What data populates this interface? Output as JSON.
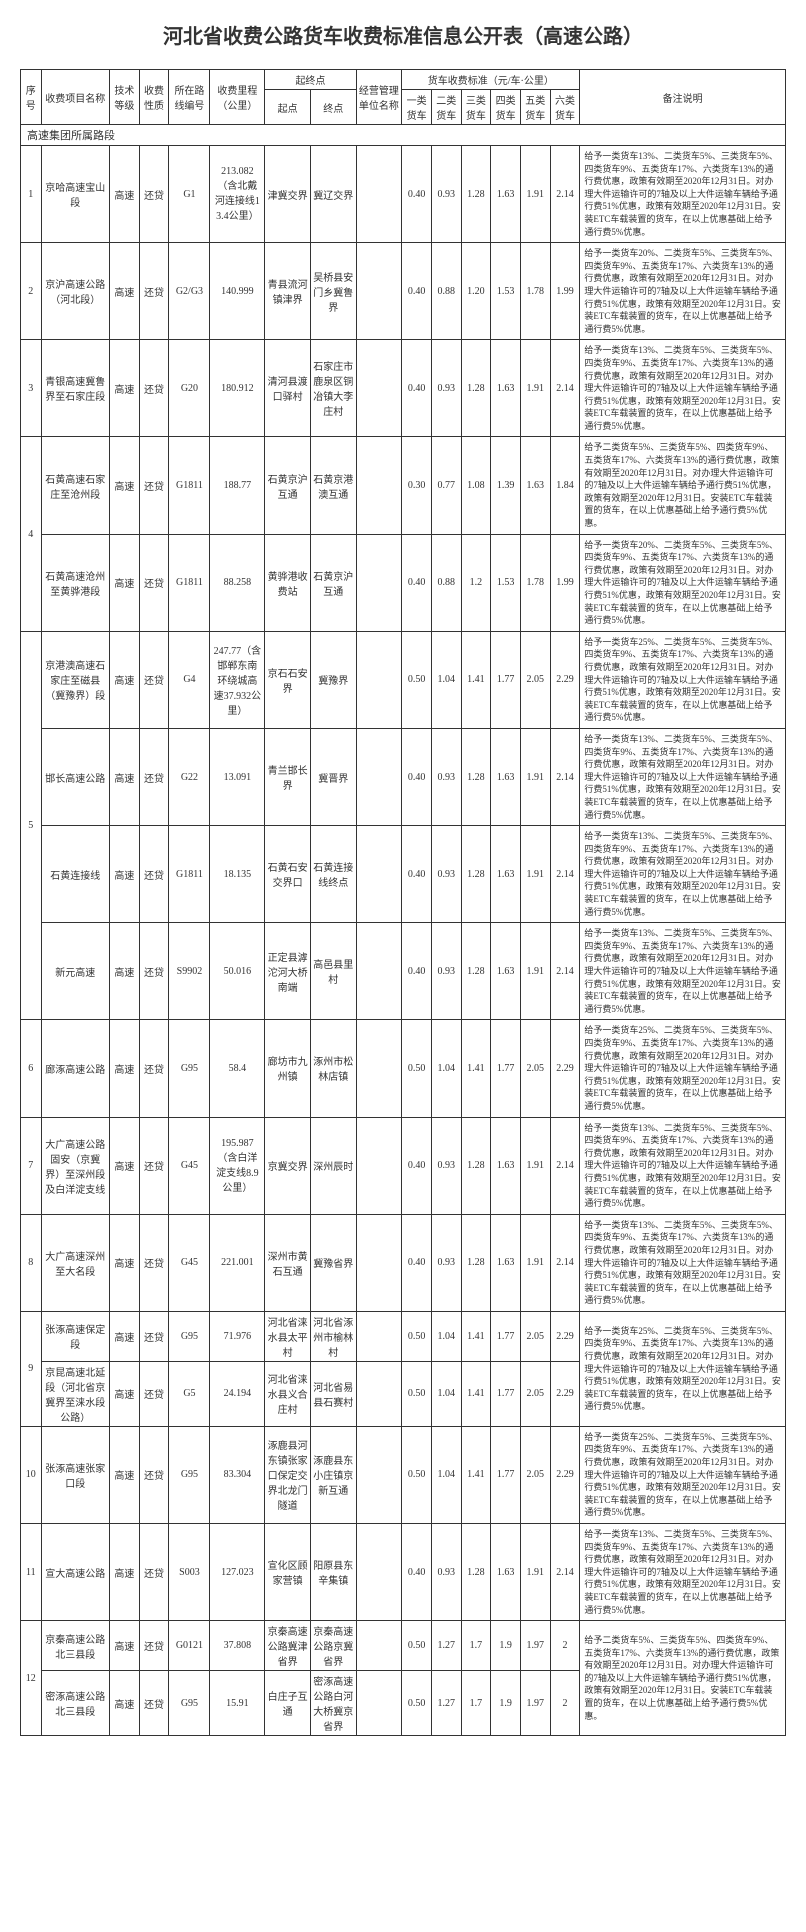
{
  "title": "河北省收费公路货车收费标准信息公开表（高速公路）",
  "headers": {
    "seq": "序号",
    "name": "收费项目名称",
    "tech": "技术等级",
    "fee": "收费性质",
    "route": "所在路线编号",
    "mileage": "收费里程（公里）",
    "startend": "起终点",
    "start": "起点",
    "end": "终点",
    "org": "经营管理单位名称",
    "rates": "货车收费标准（元/车·公里）",
    "c1": "一类货车",
    "c2": "二类货车",
    "c3": "三类货车",
    "c4": "四类货车",
    "c5": "五类货车",
    "c6": "六类货车",
    "remarks": "备注说明"
  },
  "section": "高速集团所属路段",
  "rows": [
    {
      "seq": "1",
      "name": "京哈高速宝山段",
      "tech": "高速",
      "fee": "还贷",
      "route": "G1",
      "mileage": "213.082（含北戴河连接线13.4公里）",
      "start": "津冀交界",
      "end": "冀辽交界",
      "org": "",
      "r": [
        "0.40",
        "0.93",
        "1.28",
        "1.63",
        "1.91",
        "2.14"
      ],
      "remarks": "给予一类货车13%、二类货车5%、三类货车5%、四类货车9%、五类货车17%、六类货车13%的通行费优惠，政策有效期至2020年12月31日。对办理大件运输许可的7轴及以上大件运输车辆给予通行费51%优惠，政策有效期至2020年12月31日。安装ETC车载装置的货车，在以上优惠基础上给予通行费5%优惠。"
    },
    {
      "seq": "2",
      "name": "京沪高速公路（河北段）",
      "tech": "高速",
      "fee": "还贷",
      "route": "G2/G3",
      "mileage": "140.999",
      "start": "青县流河镇津界",
      "end": "吴桥县安门乡冀鲁界",
      "org": "",
      "r": [
        "0.40",
        "0.88",
        "1.20",
        "1.53",
        "1.78",
        "1.99"
      ],
      "remarks": "给予一类货车20%、二类货车5%、三类货车5%、四类货车9%、五类货车17%、六类货车13%的通行费优惠，政策有效期至2020年12月31日。对办理大件运输许可的7轴及以上大件运输车辆给予通行费51%优惠，政策有效期至2020年12月31日。安装ETC车载装置的货车，在以上优惠基础上给予通行费5%优惠。"
    },
    {
      "seq": "3",
      "name": "青银高速冀鲁界至石家庄段",
      "tech": "高速",
      "fee": "还贷",
      "route": "G20",
      "mileage": "180.912",
      "start": "清河县渡口驿村",
      "end": "石家庄市鹿泉区铜冶镇大李庄村",
      "org": "",
      "r": [
        "0.40",
        "0.93",
        "1.28",
        "1.63",
        "1.91",
        "2.14"
      ],
      "remarks": "给予一类货车13%、二类货车5%、三类货车5%、四类货车9%、五类货车17%、六类货车13%的通行费优惠，政策有效期至2020年12月31日。对办理大件运输许可的7轴及以上大件运输车辆给予通行费51%优惠，政策有效期至2020年12月31日。安装ETC车载装置的货车，在以上优惠基础上给予通行费5%优惠。"
    },
    {
      "seq": "4",
      "g": 2,
      "name": "石黄高速石家庄至沧州段",
      "tech": "高速",
      "fee": "还贷",
      "route": "G1811",
      "mileage": "188.77",
      "start": "石黄京沪互通",
      "end": "石黄京港澳互通",
      "org": "",
      "r": [
        "0.30",
        "0.77",
        "1.08",
        "1.39",
        "1.63",
        "1.84"
      ],
      "remarks": "给予二类货车5%、三类货车5%、四类货车9%、五类货车17%、六类货车13%的通行费优惠，政策有效期至2020年12月31日。对办理大件运输许可的7轴及以上大件运输车辆给予通行费51%优惠，政策有效期至2020年12月31日。安装ETC车载装置的货车，在以上优惠基础上给予通行费5%优惠。"
    },
    {
      "name": "石黄高速沧州至黄骅港段",
      "tech": "高速",
      "fee": "还贷",
      "route": "G1811",
      "mileage": "88.258",
      "start": "黄骅港收费站",
      "end": "石黄京沪互通",
      "org": "",
      "r": [
        "0.40",
        "0.88",
        "1.2",
        "1.53",
        "1.78",
        "1.99"
      ],
      "remarks": "给予一类货车20%、二类货车5%、三类货车5%、四类货车9%、五类货车17%、六类货车13%的通行费优惠，政策有效期至2020年12月31日。对办理大件运输许可的7轴及以上大件运输车辆给予通行费51%优惠，政策有效期至2020年12月31日。安装ETC车载装置的货车，在以上优惠基础上给予通行费5%优惠。"
    },
    {
      "seq": "5",
      "g": 4,
      "name": "京港澳高速石家庄至磁县（冀豫界）段",
      "tech": "高速",
      "fee": "还贷",
      "route": "G4",
      "mileage": "247.77（含邯郸东南环绕城高速37.932公里）",
      "start": "京石石安界",
      "end": "冀豫界",
      "org": "",
      "r": [
        "0.50",
        "1.04",
        "1.41",
        "1.77",
        "2.05",
        "2.29"
      ],
      "remarks": "给予一类货车25%、二类货车5%、三类货车5%、四类货车9%、五类货车17%、六类货车13%的通行费优惠，政策有效期至2020年12月31日。对办理大件运输许可的7轴及以上大件运输车辆给予通行费51%优惠，政策有效期至2020年12月31日。安装ETC车载装置的货车，在以上优惠基础上给予通行费5%优惠。"
    },
    {
      "name": "邯长高速公路",
      "tech": "高速",
      "fee": "还贷",
      "route": "G22",
      "mileage": "13.091",
      "start": "青兰邯长界",
      "end": "冀晋界",
      "org": "",
      "r": [
        "0.40",
        "0.93",
        "1.28",
        "1.63",
        "1.91",
        "2.14"
      ],
      "remarks": "给予一类货车13%、二类货车5%、三类货车5%、四类货车9%、五类货车17%、六类货车13%的通行费优惠，政策有效期至2020年12月31日。对办理大件运输许可的7轴及以上大件运输车辆给予通行费51%优惠，政策有效期至2020年12月31日。安装ETC车载装置的货车，在以上优惠基础上给予通行费5%优惠。"
    },
    {
      "name": "石黄连接线",
      "tech": "高速",
      "fee": "还贷",
      "route": "G1811",
      "mileage": "18.135",
      "start": "石黄石安交界口",
      "end": "石黄连接线终点",
      "org": "",
      "r": [
        "0.40",
        "0.93",
        "1.28",
        "1.63",
        "1.91",
        "2.14"
      ],
      "remarks": "给予一类货车13%、二类货车5%、三类货车5%、四类货车9%、五类货车17%、六类货车13%的通行费优惠，政策有效期至2020年12月31日。对办理大件运输许可的7轴及以上大件运输车辆给予通行费51%优惠，政策有效期至2020年12月31日。安装ETC车载装置的货车，在以上优惠基础上给予通行费5%优惠。"
    },
    {
      "name": "新元高速",
      "tech": "高速",
      "fee": "还贷",
      "route": "S9902",
      "mileage": "50.016",
      "start": "正定县滹沱河大桥南端",
      "end": "高邑县里村",
      "org": "",
      "r": [
        "0.40",
        "0.93",
        "1.28",
        "1.63",
        "1.91",
        "2.14"
      ],
      "remarks": "给予一类货车13%、二类货车5%、三类货车5%、四类货车9%、五类货车17%、六类货车13%的通行费优惠，政策有效期至2020年12月31日。对办理大件运输许可的7轴及以上大件运输车辆给予通行费51%优惠，政策有效期至2020年12月31日。安装ETC车载装置的货车，在以上优惠基础上给予通行费5%优惠。"
    },
    {
      "seq": "6",
      "name": "廊涿高速公路",
      "tech": "高速",
      "fee": "还贷",
      "route": "G95",
      "mileage": "58.4",
      "start": "廊坊市九州镇",
      "end": "涿州市松林店镇",
      "org": "",
      "r": [
        "0.50",
        "1.04",
        "1.41",
        "1.77",
        "2.05",
        "2.29"
      ],
      "remarks": "给予一类货车25%、二类货车5%、三类货车5%、四类货车9%、五类货车17%、六类货车13%的通行费优惠，政策有效期至2020年12月31日。对办理大件运输许可的7轴及以上大件运输车辆给予通行费51%优惠，政策有效期至2020年12月31日。安装ETC车载装置的货车，在以上优惠基础上给予通行费5%优惠。"
    },
    {
      "seq": "7",
      "name": "大广高速公路固安（京冀界）至深州段及白洋淀支线",
      "tech": "高速",
      "fee": "还贷",
      "route": "G45",
      "mileage": "195.987（含白洋淀支线8.9公里）",
      "start": "京冀交界",
      "end": "深州辰时",
      "org": "",
      "r": [
        "0.40",
        "0.93",
        "1.28",
        "1.63",
        "1.91",
        "2.14"
      ],
      "remarks": "给予一类货车13%、二类货车5%、三类货车5%、四类货车9%、五类货车17%、六类货车13%的通行费优惠，政策有效期至2020年12月31日。对办理大件运输许可的7轴及以上大件运输车辆给予通行费51%优惠，政策有效期至2020年12月31日。安装ETC车载装置的货车，在以上优惠基础上给予通行费5%优惠。"
    },
    {
      "seq": "8",
      "name": "大广高速深州至大名段",
      "tech": "高速",
      "fee": "还贷",
      "route": "G45",
      "mileage": "221.001",
      "start": "深州市黄石互通",
      "end": "冀豫省界",
      "org": "",
      "r": [
        "0.40",
        "0.93",
        "1.28",
        "1.63",
        "1.91",
        "2.14"
      ],
      "remarks": "给予一类货车13%、二类货车5%、三类货车5%、四类货车9%、五类货车17%、六类货车13%的通行费优惠，政策有效期至2020年12月31日。对办理大件运输许可的7轴及以上大件运输车辆给予通行费51%优惠，政策有效期至2020年12月31日。安装ETC车载装置的货车，在以上优惠基础上给予通行费5%优惠。"
    },
    {
      "seq": "9",
      "g": 2,
      "name": "张涿高速保定段",
      "tech": "高速",
      "fee": "还贷",
      "route": "G95",
      "mileage": "71.976",
      "start": "河北省涞水县太平村",
      "end": "河北省涿州市榆林村",
      "org": "",
      "r": [
        "0.50",
        "1.04",
        "1.41",
        "1.77",
        "2.05",
        "2.29"
      ],
      "remarks": "给予一类货车25%、二类货车5%、三类货车5%、四类货车9%、五类货车17%、六类货车13%的通行费优惠，政策有效期至2020年12月31日。对办理大件运输许可的7轴及以上大件运输车辆给予通行费51%优惠，政策有效期至2020年12月31日。安装ETC车载装置的货车，在以上优惠基础上给予通行费5%优惠。",
      "rspan": 2
    },
    {
      "name": "京昆高速北延段（河北省京冀界至涞水段公路）",
      "tech": "高速",
      "fee": "还贷",
      "route": "G5",
      "mileage": "24.194",
      "start": "河北省涞水县义合庄村",
      "end": "河北省易县石赛村",
      "org": "",
      "r": [
        "0.50",
        "1.04",
        "1.41",
        "1.77",
        "2.05",
        "2.29"
      ]
    },
    {
      "seq": "10",
      "name": "张涿高速张家口段",
      "tech": "高速",
      "fee": "还贷",
      "route": "G95",
      "mileage": "83.304",
      "start": "涿鹿县河东镇张家口保定交界北龙门隧道",
      "end": "涿鹿县东小庄镇京新互通",
      "org": "",
      "r": [
        "0.50",
        "1.04",
        "1.41",
        "1.77",
        "2.05",
        "2.29"
      ],
      "remarks": "给予一类货车25%、二类货车5%、三类货车5%、四类货车9%、五类货车17%、六类货车13%的通行费优惠，政策有效期至2020年12月31日。对办理大件运输许可的7轴及以上大件运输车辆给予通行费51%优惠，政策有效期至2020年12月31日。安装ETC车载装置的货车，在以上优惠基础上给予通行费5%优惠。"
    },
    {
      "seq": "11",
      "name": "宣大高速公路",
      "tech": "高速",
      "fee": "还贷",
      "route": "S003",
      "mileage": "127.023",
      "start": "宣化区顾家营镇",
      "end": "阳原县东辛集镇",
      "org": "",
      "r": [
        "0.40",
        "0.93",
        "1.28",
        "1.63",
        "1.91",
        "2.14"
      ],
      "remarks": "给予一类货车13%、二类货车5%、三类货车5%、四类货车9%、五类货车17%、六类货车13%的通行费优惠，政策有效期至2020年12月31日。对办理大件运输许可的7轴及以上大件运输车辆给予通行费51%优惠，政策有效期至2020年12月31日。安装ETC车载装置的货车，在以上优惠基础上给予通行费5%优惠。"
    },
    {
      "seq": "12",
      "g": 2,
      "name": "京秦高速公路北三县段",
      "tech": "高速",
      "fee": "还贷",
      "route": "G0121",
      "mileage": "37.808",
      "start": "京秦高速公路冀津省界",
      "end": "京秦高速公路京冀省界",
      "org": "",
      "r": [
        "0.50",
        "1.27",
        "1.7",
        "1.9",
        "1.97",
        "2"
      ],
      "remarks": "给予二类货车5%、三类货车5%、四类货车9%、五类货车17%、六类货车13%的通行费优惠，政策有效期至2020年12月31日。对办理大件运输许可的7轴及以上大件运输车辆给予通行费51%优惠，政策有效期至2020年12月31日。安装ETC车载装置的货车，在以上优惠基础上给予通行费5%优惠。",
      "rspan": 2
    },
    {
      "name": "密涿高速公路北三县段",
      "tech": "高速",
      "fee": "还贷",
      "route": "G95",
      "mileage": "15.91",
      "start": "白庄子互通",
      "end": "密涿高速公路白河大桥冀京省界",
      "org": "",
      "r": [
        "0.50",
        "1.27",
        "1.7",
        "1.9",
        "1.97",
        "2"
      ]
    }
  ]
}
